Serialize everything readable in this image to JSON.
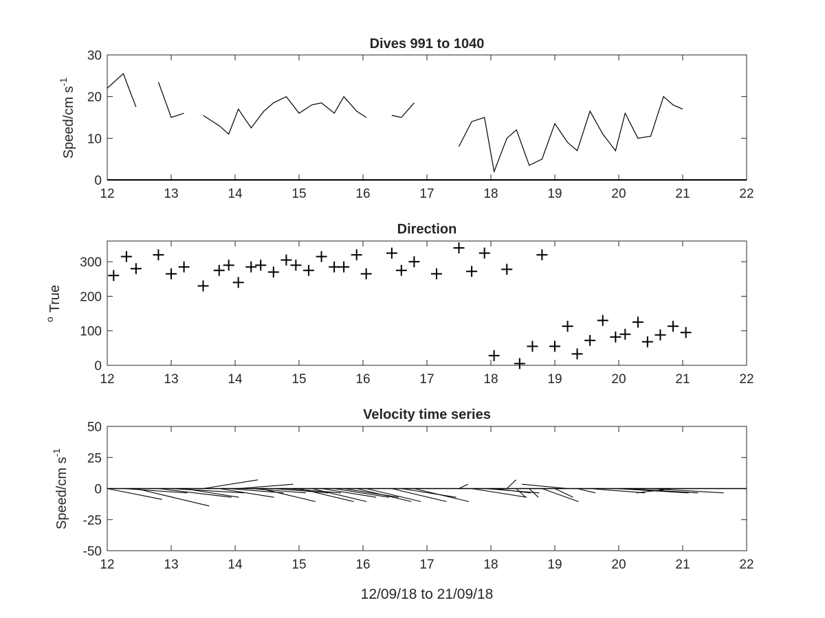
{
  "chart_data": [
    {
      "type": "line",
      "title": "Dives 991 to 1040",
      "ylabel": "Speed/cm s",
      "ylabel_superscript": "-1",
      "xlim": [
        12,
        22
      ],
      "ylim": [
        0,
        30
      ],
      "xticks": [
        12,
        13,
        14,
        15,
        16,
        17,
        18,
        19,
        20,
        21,
        22
      ],
      "yticks": [
        0,
        10,
        20,
        30
      ],
      "baseline": 0,
      "segments": [
        [
          [
            12.0,
            22.0
          ],
          [
            12.25,
            25.5
          ],
          [
            12.45,
            17.5
          ]
        ],
        [
          [
            12.8,
            23.5
          ],
          [
            13.0,
            15.0
          ],
          [
            13.2,
            16.0
          ]
        ],
        [
          [
            13.5,
            15.5
          ],
          [
            13.75,
            13.0
          ],
          [
            13.9,
            11.0
          ],
          [
            14.05,
            17.0
          ],
          [
            14.25,
            12.5
          ],
          [
            14.45,
            16.5
          ],
          [
            14.6,
            18.5
          ],
          [
            14.8,
            20.0
          ],
          [
            15.0,
            16.0
          ],
          [
            15.2,
            18.0
          ],
          [
            15.35,
            18.5
          ],
          [
            15.55,
            16.0
          ],
          [
            15.7,
            20.0
          ],
          [
            15.9,
            16.5
          ],
          [
            16.05,
            15.0
          ]
        ],
        [
          [
            16.45,
            15.5
          ],
          [
            16.6,
            15.0
          ],
          [
            16.8,
            18.5
          ]
        ],
        [
          [
            17.5,
            8.0
          ],
          [
            17.7,
            14.0
          ],
          [
            17.9,
            15.0
          ],
          [
            18.05,
            2.0
          ],
          [
            18.25,
            10.0
          ],
          [
            18.4,
            12.0
          ],
          [
            18.6,
            3.5
          ],
          [
            18.8,
            5.0
          ],
          [
            19.0,
            13.5
          ],
          [
            19.2,
            9.0
          ],
          [
            19.35,
            7.0
          ],
          [
            19.55,
            16.5
          ],
          [
            19.75,
            11.0
          ],
          [
            19.95,
            7.0
          ],
          [
            20.1,
            16.0
          ],
          [
            20.3,
            10.0
          ],
          [
            20.5,
            10.5
          ],
          [
            20.7,
            20.0
          ],
          [
            20.85,
            18.0
          ],
          [
            21.0,
            17.0
          ]
        ]
      ]
    },
    {
      "type": "scatter",
      "title": "Direction",
      "ylabel": "True",
      "ylabel_prefix_superscript": "o",
      "marker": "+",
      "xlim": [
        12,
        22
      ],
      "ylim": [
        0,
        360
      ],
      "xticks": [
        12,
        13,
        14,
        15,
        16,
        17,
        18,
        19,
        20,
        21,
        22
      ],
      "yticks": [
        0,
        100,
        200,
        300
      ],
      "x": [
        12.1,
        12.3,
        12.45,
        12.8,
        13.0,
        13.2,
        13.5,
        13.75,
        13.9,
        14.05,
        14.25,
        14.4,
        14.6,
        14.8,
        14.95,
        15.15,
        15.35,
        15.55,
        15.7,
        15.9,
        16.05,
        16.45,
        16.6,
        16.8,
        17.15,
        17.5,
        17.7,
        17.9,
        18.25,
        18.8,
        18.05,
        18.45,
        18.65,
        19.0,
        19.2,
        19.35,
        19.55,
        19.75,
        19.95,
        20.1,
        20.3,
        20.45,
        20.65,
        20.85,
        21.05
      ],
      "y": [
        260,
        315,
        280,
        320,
        265,
        285,
        230,
        275,
        290,
        240,
        285,
        290,
        270,
        305,
        290,
        275,
        315,
        285,
        285,
        320,
        265,
        325,
        275,
        300,
        265,
        340,
        272,
        325,
        278,
        320,
        28,
        5,
        55,
        55,
        113,
        33,
        72,
        130,
        82,
        90,
        125,
        68,
        88,
        113,
        95
      ]
    },
    {
      "type": "quiver",
      "title": "Velocity time series",
      "ylabel": "Speed/cm s",
      "ylabel_superscript": "-1",
      "xlabel": "12/09/18 to 21/09/18",
      "xlim": [
        12,
        22
      ],
      "ylim": [
        -50,
        50
      ],
      "xticks": [
        12,
        13,
        14,
        15,
        16,
        17,
        18,
        19,
        20,
        21,
        22
      ],
      "yticks": [
        -50,
        -25,
        0,
        25,
        50
      ],
      "baseline": 0,
      "origins": [
        12.0,
        12.25,
        12.45,
        12.8,
        13.0,
        13.2,
        13.5,
        13.75,
        13.9,
        14.05,
        14.25,
        14.4,
        14.6,
        14.8,
        15.0,
        15.2,
        15.35,
        15.55,
        15.7,
        15.9,
        16.05,
        16.45,
        16.6,
        16.8,
        17.5,
        17.7,
        17.9,
        18.05,
        18.25,
        18.4,
        18.6,
        18.8,
        19.0,
        19.2,
        19.35,
        19.55,
        19.75,
        19.95,
        20.1,
        20.3,
        20.5,
        20.7,
        20.85,
        21.0
      ],
      "u": [
        3.0,
        3.5,
        4.0,
        4.0,
        4.0,
        3.0,
        3.0,
        3.0,
        3.0,
        3.0,
        3.0,
        3.0,
        3.0,
        3.0,
        3.0,
        3.0,
        3.0,
        3.0,
        3.0,
        3.0,
        3.0,
        3.0,
        3.0,
        3.0,
        0.5,
        3.0,
        3.0,
        2.0,
        0.5,
        0.5,
        0.5,
        2.0,
        1.0,
        -2.5,
        1.0,
        3.0,
        3.5,
        4.0,
        4.0,
        4.0,
        4.0,
        3.0,
        -2.0,
        1.0
      ],
      "v": [
        -2.5,
        -1.0,
        -4.0,
        -2.0,
        -1.0,
        -2.0,
        2.0,
        -2.0,
        -1.0,
        1.0,
        -1.0,
        -3.0,
        -1.0,
        -1.0,
        -3.0,
        -3.0,
        -2.0,
        -2.0,
        -2.0,
        -3.0,
        -3.0,
        -3.0,
        -2.0,
        -3.0,
        1.0,
        -2.0,
        -1.0,
        -1.0,
        2.0,
        -2.0,
        -2.0,
        -3.0,
        -2.0,
        1.0,
        -1.0,
        -1.0,
        0.0,
        -1.0,
        -1.0,
        0.0,
        -1.0,
        0.0,
        -1.0,
        0.0
      ]
    }
  ]
}
